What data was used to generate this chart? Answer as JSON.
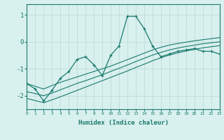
{
  "x_values": [
    0,
    1,
    2,
    3,
    4,
    5,
    6,
    7,
    8,
    9,
    10,
    11,
    12,
    13,
    14,
    15,
    16,
    17,
    18,
    19,
    20,
    21,
    22,
    23
  ],
  "y_main": [
    -1.55,
    -1.75,
    -2.2,
    -1.8,
    -1.35,
    -1.1,
    -0.65,
    -0.55,
    -0.85,
    -1.25,
    -0.5,
    -0.15,
    0.95,
    0.95,
    0.5,
    -0.15,
    -0.55,
    -0.45,
    -0.35,
    -0.3,
    -0.25,
    -0.35,
    -0.35,
    -0.45
  ],
  "y_line1": [
    -1.55,
    -1.65,
    -1.75,
    -1.62,
    -1.5,
    -1.4,
    -1.3,
    -1.2,
    -1.1,
    -1.0,
    -0.9,
    -0.78,
    -0.66,
    -0.54,
    -0.42,
    -0.3,
    -0.2,
    -0.12,
    -0.06,
    -0.01,
    0.04,
    0.08,
    0.12,
    0.16
  ],
  "y_line2": [
    -1.85,
    -1.92,
    -2.0,
    -1.9,
    -1.78,
    -1.66,
    -1.54,
    -1.44,
    -1.33,
    -1.22,
    -1.1,
    -0.98,
    -0.86,
    -0.73,
    -0.61,
    -0.49,
    -0.39,
    -0.3,
    -0.23,
    -0.17,
    -0.12,
    -0.07,
    -0.03,
    0.0
  ],
  "y_line3": [
    -2.1,
    -2.18,
    -2.26,
    -2.15,
    -2.04,
    -1.92,
    -1.8,
    -1.68,
    -1.56,
    -1.44,
    -1.32,
    -1.2,
    -1.08,
    -0.95,
    -0.83,
    -0.7,
    -0.59,
    -0.49,
    -0.41,
    -0.34,
    -0.28,
    -0.22,
    -0.18,
    -0.14
  ],
  "color_main": "#1a7a6e",
  "color_lines": "#1a7a6e",
  "bg_color": "#d8f0ee",
  "grid_color": "#c0dcd8",
  "tick_color": "#1a7a6e",
  "xlabel": "Humidex (Indice chaleur)",
  "ytick_labels": [
    "-2",
    "-1",
    "0",
    "1"
  ],
  "ytick_values": [
    -2,
    -1,
    0,
    1
  ],
  "xlim": [
    0,
    23
  ],
  "ylim": [
    -2.5,
    1.4
  ]
}
